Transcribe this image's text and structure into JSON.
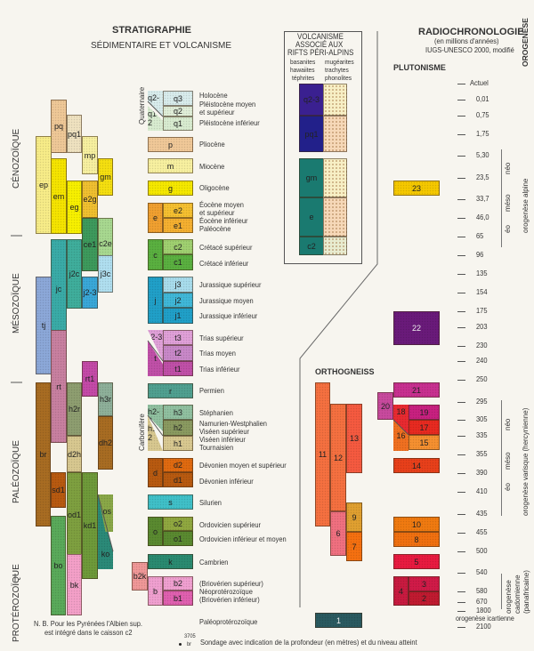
{
  "left": {
    "title": "STRATIGRAPHIE",
    "subtitle": "SÉDIMENTAIRE ET VOLCANISME"
  },
  "eras": {
    "cenozoique": "CÉNOZOÏQUE",
    "mesozoique": "MÉSOZOÏQUE",
    "paleozoique": "PALÉOZOÏQUE",
    "proterozoique": "PROTÉROZOÏQUE",
    "quaternaire": "Quaternaire",
    "carbonifere": "Carbonifère"
  },
  "volcanism": {
    "title1": "VOLCANISME",
    "title2": "ASSOCIÉ AUX",
    "title3": "RIFTS PÉRI-ALPINS",
    "col1": [
      "basanites",
      "hawaiites",
      "téphrites"
    ],
    "col2": [
      "mugéarites",
      "trachytes",
      "phonolites"
    ],
    "labels": [
      "q2-3",
      "pq1",
      "gm",
      "e",
      "c2"
    ],
    "colors": {
      "q23": "#3a2090",
      "pq1": "#22208a",
      "teal": "#1a7a70",
      "light": "#f7efc5",
      "peach": "#f6d8b8"
    }
  },
  "right": {
    "title": "RADIOCHRONOLOGIE",
    "sub1": "(en millions d'années)",
    "sub2": "IUGS-UNESCO 2000, modifié",
    "plutonism": "PLUTONISME",
    "orthogneiss": "ORTHOGNEISS",
    "orogenese": "OROGENÈSE",
    "alpine": "orogenèse alpine",
    "varisque": "orogenèse varisque (hercynienne)",
    "cadomienne": [
      "orogenèse",
      "cadomienne",
      "(panafricaine)"
    ],
    "neo": "néo",
    "meso": "méso",
    "eo": "éo",
    "icartienne": "orogenèse icartienne"
  },
  "ages": [
    "Actuel",
    "0,01",
    "0,75",
    "1,75",
    "5,30",
    "23,5",
    "33,7",
    "46,0",
    "65",
    "96",
    "135",
    "154",
    "175",
    "203",
    "230",
    "240",
    "250",
    "295",
    "305",
    "335",
    "355",
    "390",
    "410",
    "435",
    "455",
    "500",
    "540",
    "580",
    "670",
    "1800",
    "2100"
  ],
  "periods": [
    "Holocène",
    "Pléistocène moyen",
    "et supérieur",
    "Pléistocène inférieur",
    "Pliocène",
    "Miocène",
    "Oligocène",
    "Éocène moyen",
    "et supérieur",
    "Éocène inférieur",
    "Paléocène",
    "Crétacé supérieur",
    "Crétacé inférieur",
    "Jurassique supérieur",
    "Jurassique moyen",
    "Jurassique inférieur",
    "Trias supérieur",
    "Trias moyen",
    "Trias inférieur",
    "Permien",
    "Stéphanien",
    "Namurien-Westphalien",
    "Viséen supérieur",
    "Viséen inférieur",
    "Tournaisien",
    "Dévonien moyen et supérieur",
    "Dévonien inférieur",
    "Silurien",
    "Ordovicien supérieur",
    "Ordovicien inférieur et moyen",
    "Cambrien",
    "(Briovérien supérieur)",
    "Néoprotérozoïque",
    "(Briovérien inférieur)",
    "Paléoprotérozoïque"
  ],
  "note": {
    "line1": "N. B.  Pour les Pyrénées l'Albien sup.",
    "line2": "est intégré dans le caisson c2",
    "sondage_depth": "3705",
    "sondage_level": "br",
    "sondage_text": "Sondage avec indication de la profondeur (en mètres) et du niveau atteint"
  },
  "boxes": {
    "pq": {
      "label": "pq",
      "color": "#efc897"
    },
    "pq1": {
      "label": "pq1",
      "color": "#efe2c0"
    },
    "mp": {
      "label": "mp",
      "color": "#f7f0a0"
    },
    "gm": {
      "label": "gm",
      "color": "#f5df10"
    },
    "ep": {
      "label": "ep",
      "color": "#f7ec88"
    },
    "em": {
      "label": "em",
      "color": "#f5e400"
    },
    "eg": {
      "label": "eg",
      "color": "#f7f000"
    },
    "e2g": {
      "label": "e2g",
      "color": "#f0c030"
    },
    "ce1": {
      "label": "ce1",
      "color": "#3d9a5c"
    },
    "c2e": {
      "label": "c2e",
      "color": "#a8d890"
    },
    "jc": {
      "label": "jc",
      "color": "#3aaba7"
    },
    "j2c": {
      "label": "j2c",
      "color": "#3fae9c"
    },
    "j23": {
      "label": "j2-3",
      "color": "#3aa8d8"
    },
    "j3c": {
      "label": "j3c",
      "color": "#b0dff0"
    },
    "tj": {
      "label": "tj",
      "color": "#8ca8d8"
    },
    "rt": {
      "label": "rt",
      "color": "#c880a0"
    },
    "rt1": {
      "label": "rt1",
      "color": "#c44aa8"
    },
    "br": {
      "label": "br",
      "color": "#a86c22"
    },
    "h2r": {
      "label": "h2r",
      "color": "#8e9e70"
    },
    "d2h": {
      "label": "d2h",
      "color": "#d8c890"
    },
    "h3r": {
      "label": "h3r",
      "color": "#8eb09a"
    },
    "dh2": {
      "label": "dh2",
      "color": "#a86c22"
    },
    "sd1": {
      "label": "sd1",
      "color": "#b85a10"
    },
    "od1": {
      "label": "od1",
      "color": "#7ea040"
    },
    "kd1": {
      "label": "kd1",
      "color": "#6e9a3a"
    },
    "os": {
      "label": "os",
      "color": "#8aa848"
    },
    "ko": {
      "label": "ko",
      "color": "#2b8a78"
    },
    "bo": {
      "label": "bo",
      "color": "#5aaa5a"
    },
    "bk": {
      "label": "bk",
      "color": "#f4a0c8"
    },
    "q23": {
      "label": "q2-3",
      "color": "#d8ecec"
    },
    "q3": {
      "label": "q3",
      "color": "#d8ecec"
    },
    "q2": {
      "label": "q2",
      "color": "#e0eed8"
    },
    "q12": {
      "label": "q1-2",
      "color": "#d8ecd0"
    },
    "q1": {
      "label": "q1",
      "color": "#d8ecd0"
    },
    "p": {
      "label": "p",
      "color": "#f0c898"
    },
    "m": {
      "label": "m",
      "color": "#f8f0a0"
    },
    "g": {
      "label": "g",
      "color": "#f5e800"
    },
    "e": {
      "label": "e",
      "color": "#f0a030"
    },
    "e2": {
      "label": "e2",
      "color": "#f5c030"
    },
    "e1": {
      "label": "e1",
      "color": "#f5b030"
    },
    "c": {
      "label": "c",
      "color": "#5ab040"
    },
    "c2": {
      "label": "c2",
      "color": "#a0d070"
    },
    "c1": {
      "label": "c1",
      "color": "#5ab040"
    },
    "j": {
      "label": "j",
      "color": "#20a0c8"
    },
    "j3": {
      "label": "j3",
      "color": "#a8dcec"
    },
    "j2": {
      "label": "j2",
      "color": "#40b8d8"
    },
    "j1": {
      "label": "j1",
      "color": "#20a0c8"
    },
    "t23": {
      "label": "t2-3",
      "color": "#e0a0d8"
    },
    "t": {
      "label": "t",
      "color": "#c050a8"
    },
    "t3": {
      "label": "t3",
      "color": "#e0a0d8"
    },
    "t2": {
      "label": "t2",
      "color": "#c888c8"
    },
    "t1": {
      "label": "t1",
      "color": "#c050a8"
    },
    "r": {
      "label": "r",
      "color": "#50a090"
    },
    "h23": {
      "label": "h2-3",
      "color": "#90c0a0"
    },
    "h12": {
      "label": "h1-2",
      "color": "#d8c890"
    },
    "h3": {
      "label": "h3",
      "color": "#90c0a0"
    },
    "h2": {
      "label": "h2",
      "color": "#8a9a60"
    },
    "h1": {
      "label": "h1",
      "color": "#d8c890"
    },
    "d": {
      "label": "d",
      "color": "#b85a10"
    },
    "d2": {
      "label": "d2",
      "color": "#e06a10"
    },
    "d1": {
      "label": "d1",
      "color": "#b85a10"
    },
    "s": {
      "label": "s",
      "color": "#40c0c8"
    },
    "o": {
      "label": "o",
      "color": "#5a8a30"
    },
    "o2": {
      "label": "o2",
      "color": "#90a840"
    },
    "o1": {
      "label": "o1",
      "color": "#5a8a30"
    },
    "k": {
      "label": "k",
      "color": "#2a8a70"
    },
    "b2k": {
      "label": "b2k",
      "color": "#f09898"
    },
    "b": {
      "label": "b",
      "color": "#f0a0d0"
    },
    "b2": {
      "label": "b2",
      "color": "#f0a0d0"
    },
    "b1": {
      "label": "b1",
      "color": "#e060b0"
    },
    "n23": {
      "label": "23",
      "color": "#f5c800"
    },
    "n22": {
      "label": "22",
      "color": "#6a1a7a"
    },
    "n21": {
      "label": "21",
      "color": "#c83090"
    },
    "n20": {
      "label": "20",
      "color": "#c84a9e"
    },
    "n18": {
      "label": "18",
      "color": "#e82a30"
    },
    "n19": {
      "label": "19",
      "color": "#c82080"
    },
    "n17": {
      "label": "17",
      "color": "#e82a20"
    },
    "n16": {
      "label": "16",
      "color": "#f07020"
    },
    "n15": {
      "label": "15",
      "color": "#f59030"
    },
    "n14": {
      "label": "14",
      "color": "#e8401a"
    },
    "n10": {
      "label": "10",
      "color": "#f07a10"
    },
    "n8": {
      "label": "8",
      "color": "#f07010"
    },
    "n5": {
      "label": "5",
      "color": "#e81a40"
    },
    "n4": {
      "label": "4",
      "color": "#c81a40"
    },
    "n3": {
      "label": "3",
      "color": "#d01a48"
    },
    "n2": {
      "label": "2",
      "color": "#c01a30"
    },
    "n1": {
      "label": "1",
      "color": "#2a5a60"
    },
    "n11": {
      "label": "11",
      "color": "#f57040"
    },
    "n12": {
      "label": "12",
      "color": "#f57040"
    },
    "n13": {
      "label": "13",
      "color": "#f55a40"
    },
    "n9": {
      "label": "9",
      "color": "#e0a030"
    },
    "n7": {
      "label": "7",
      "color": "#f57010"
    },
    "n6": {
      "label": "6",
      "color": "#f07080"
    }
  }
}
